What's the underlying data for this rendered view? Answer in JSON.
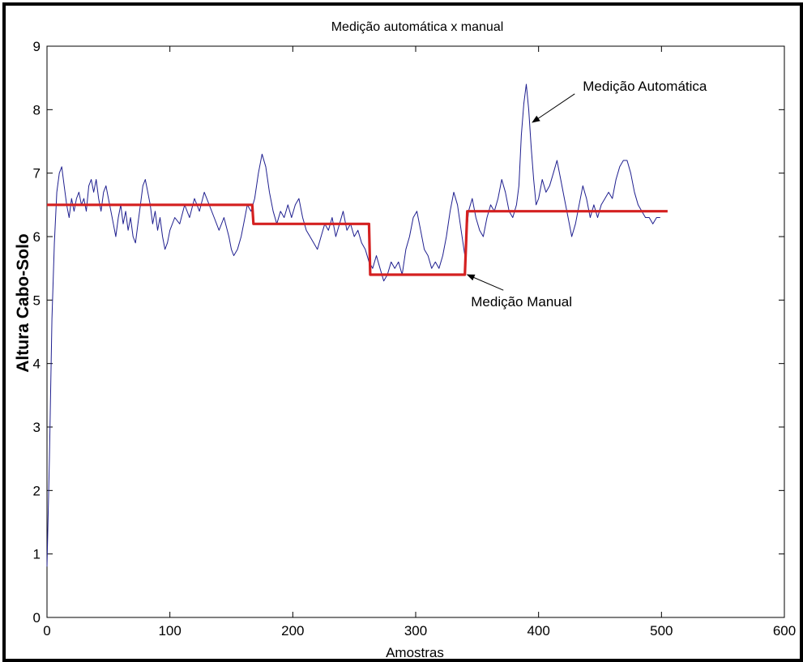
{
  "chart_data": {
    "type": "line",
    "title": "Medição automática x manual",
    "xlabel": "Amostras",
    "ylabel": "Altura Cabo-Solo",
    "xlim": [
      0,
      600
    ],
    "ylim": [
      0,
      9
    ],
    "xticks": [
      0,
      100,
      200,
      300,
      400,
      500,
      600
    ],
    "yticks": [
      0,
      1,
      2,
      3,
      4,
      5,
      6,
      7,
      8,
      9
    ],
    "grid": false,
    "legend": "none",
    "series": [
      {
        "color": "#1f1f8f",
        "points": [
          [
            0,
            0.8
          ],
          [
            2,
            2.5
          ],
          [
            4,
            4.7
          ],
          [
            6,
            5.9
          ],
          [
            8,
            6.7
          ],
          [
            10,
            7.0
          ],
          [
            12,
            7.1
          ],
          [
            14,
            6.8
          ],
          [
            16,
            6.5
          ],
          [
            18,
            6.3
          ],
          [
            20,
            6.6
          ],
          [
            22,
            6.4
          ],
          [
            24,
            6.6
          ],
          [
            26,
            6.7
          ],
          [
            28,
            6.5
          ],
          [
            30,
            6.6
          ],
          [
            32,
            6.4
          ],
          [
            34,
            6.8
          ],
          [
            36,
            6.9
          ],
          [
            38,
            6.7
          ],
          [
            40,
            6.9
          ],
          [
            42,
            6.6
          ],
          [
            44,
            6.4
          ],
          [
            46,
            6.7
          ],
          [
            48,
            6.8
          ],
          [
            50,
            6.6
          ],
          [
            52,
            6.4
          ],
          [
            54,
            6.2
          ],
          [
            56,
            6.0
          ],
          [
            58,
            6.3
          ],
          [
            60,
            6.5
          ],
          [
            62,
            6.2
          ],
          [
            64,
            6.4
          ],
          [
            66,
            6.1
          ],
          [
            68,
            6.3
          ],
          [
            70,
            6.0
          ],
          [
            72,
            5.9
          ],
          [
            74,
            6.2
          ],
          [
            76,
            6.5
          ],
          [
            78,
            6.8
          ],
          [
            80,
            6.9
          ],
          [
            82,
            6.7
          ],
          [
            84,
            6.5
          ],
          [
            86,
            6.2
          ],
          [
            88,
            6.4
          ],
          [
            90,
            6.1
          ],
          [
            92,
            6.3
          ],
          [
            94,
            6.0
          ],
          [
            96,
            5.8
          ],
          [
            98,
            5.9
          ],
          [
            100,
            6.1
          ],
          [
            104,
            6.3
          ],
          [
            108,
            6.2
          ],
          [
            112,
            6.5
          ],
          [
            116,
            6.3
          ],
          [
            120,
            6.6
          ],
          [
            124,
            6.4
          ],
          [
            128,
            6.7
          ],
          [
            132,
            6.5
          ],
          [
            136,
            6.3
          ],
          [
            140,
            6.1
          ],
          [
            144,
            6.3
          ],
          [
            148,
            6.0
          ],
          [
            150,
            5.8
          ],
          [
            152,
            5.7
          ],
          [
            155,
            5.8
          ],
          [
            158,
            6.0
          ],
          [
            160,
            6.2
          ],
          [
            163,
            6.5
          ],
          [
            166,
            6.4
          ],
          [
            169,
            6.6
          ],
          [
            172,
            7.0
          ],
          [
            175,
            7.3
          ],
          [
            178,
            7.1
          ],
          [
            181,
            6.7
          ],
          [
            184,
            6.4
          ],
          [
            187,
            6.2
          ],
          [
            190,
            6.4
          ],
          [
            193,
            6.3
          ],
          [
            196,
            6.5
          ],
          [
            199,
            6.3
          ],
          [
            202,
            6.5
          ],
          [
            205,
            6.6
          ],
          [
            208,
            6.3
          ],
          [
            211,
            6.1
          ],
          [
            214,
            6.0
          ],
          [
            217,
            5.9
          ],
          [
            220,
            5.8
          ],
          [
            223,
            6.0
          ],
          [
            226,
            6.2
          ],
          [
            229,
            6.1
          ],
          [
            232,
            6.3
          ],
          [
            235,
            6.0
          ],
          [
            238,
            6.2
          ],
          [
            241,
            6.4
          ],
          [
            244,
            6.1
          ],
          [
            247,
            6.2
          ],
          [
            250,
            6.0
          ],
          [
            253,
            6.1
          ],
          [
            256,
            5.9
          ],
          [
            259,
            5.8
          ],
          [
            262,
            5.6
          ],
          [
            265,
            5.5
          ],
          [
            268,
            5.7
          ],
          [
            271,
            5.5
          ],
          [
            274,
            5.3
          ],
          [
            277,
            5.4
          ],
          [
            280,
            5.6
          ],
          [
            283,
            5.5
          ],
          [
            286,
            5.6
          ],
          [
            289,
            5.4
          ],
          [
            292,
            5.8
          ],
          [
            295,
            6.0
          ],
          [
            298,
            6.3
          ],
          [
            301,
            6.4
          ],
          [
            304,
            6.1
          ],
          [
            307,
            5.8
          ],
          [
            310,
            5.7
          ],
          [
            313,
            5.5
          ],
          [
            316,
            5.6
          ],
          [
            319,
            5.5
          ],
          [
            322,
            5.7
          ],
          [
            325,
            6.0
          ],
          [
            328,
            6.4
          ],
          [
            331,
            6.7
          ],
          [
            334,
            6.5
          ],
          [
            337,
            6.1
          ],
          [
            340,
            5.7
          ],
          [
            343,
            6.4
          ],
          [
            346,
            6.6
          ],
          [
            349,
            6.3
          ],
          [
            352,
            6.1
          ],
          [
            355,
            6.0
          ],
          [
            358,
            6.3
          ],
          [
            361,
            6.5
          ],
          [
            364,
            6.4
          ],
          [
            367,
            6.6
          ],
          [
            370,
            6.9
          ],
          [
            373,
            6.7
          ],
          [
            376,
            6.4
          ],
          [
            379,
            6.3
          ],
          [
            382,
            6.5
          ],
          [
            384,
            6.8
          ],
          [
            386,
            7.6
          ],
          [
            388,
            8.1
          ],
          [
            390,
            8.4
          ],
          [
            392,
            8.0
          ],
          [
            394,
            7.4
          ],
          [
            396,
            6.9
          ],
          [
            398,
            6.5
          ],
          [
            400,
            6.6
          ],
          [
            403,
            6.9
          ],
          [
            406,
            6.7
          ],
          [
            409,
            6.8
          ],
          [
            412,
            7.0
          ],
          [
            415,
            7.2
          ],
          [
            418,
            6.9
          ],
          [
            421,
            6.6
          ],
          [
            424,
            6.3
          ],
          [
            427,
            6.0
          ],
          [
            430,
            6.2
          ],
          [
            433,
            6.5
          ],
          [
            436,
            6.8
          ],
          [
            439,
            6.6
          ],
          [
            442,
            6.3
          ],
          [
            445,
            6.5
          ],
          [
            448,
            6.3
          ],
          [
            451,
            6.5
          ],
          [
            454,
            6.6
          ],
          [
            457,
            6.7
          ],
          [
            460,
            6.6
          ],
          [
            463,
            6.9
          ],
          [
            466,
            7.1
          ],
          [
            469,
            7.2
          ],
          [
            472,
            7.2
          ],
          [
            475,
            7.0
          ],
          [
            478,
            6.7
          ],
          [
            481,
            6.5
          ],
          [
            484,
            6.4
          ],
          [
            487,
            6.3
          ],
          [
            490,
            6.3
          ],
          [
            493,
            6.2
          ],
          [
            496,
            6.3
          ],
          [
            499,
            6.3
          ]
        ]
      },
      {
        "color": "#d42020",
        "points": [
          [
            0,
            6.5
          ],
          [
            167,
            6.5
          ],
          [
            168,
            6.2
          ],
          [
            262,
            6.2
          ],
          [
            263,
            5.4
          ],
          [
            340,
            5.4
          ],
          [
            342,
            6.4
          ],
          [
            505,
            6.4
          ]
        ]
      }
    ],
    "annotations": [
      {
        "text": "Medição Automática",
        "x": 436,
        "y": 8.3,
        "arrow_to": [
          395,
          7.8
        ]
      },
      {
        "text": "Medição Manual",
        "x": 345,
        "y": 4.9,
        "arrow_to": [
          342,
          5.4
        ]
      }
    ]
  }
}
